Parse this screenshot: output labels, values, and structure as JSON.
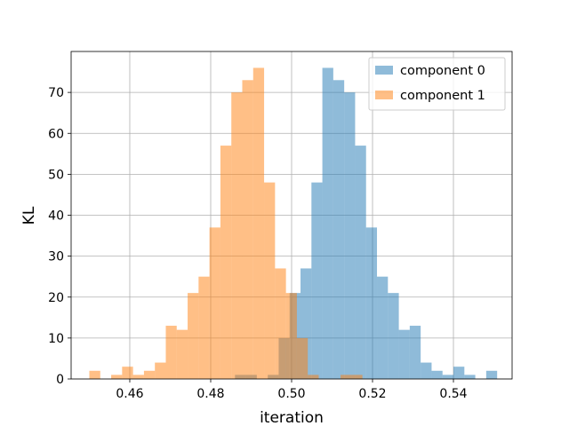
{
  "chart_data": {
    "type": "histogram",
    "title": "",
    "xlabel": "iteration",
    "ylabel": "KL",
    "xlim": [
      0.4455,
      0.5545
    ],
    "ylim": [
      0,
      80
    ],
    "xticks": [
      0.46,
      0.48,
      0.5,
      0.52,
      0.54
    ],
    "xtick_labels": [
      "0.46",
      "0.48",
      "0.50",
      "0.52",
      "0.54"
    ],
    "yticks": [
      0,
      10,
      20,
      30,
      40,
      50,
      60,
      70
    ],
    "ytick_labels": [
      "0",
      "10",
      "20",
      "30",
      "40",
      "50",
      "60",
      "70"
    ],
    "grid": true,
    "legend_position": "top-right",
    "bin_width": 0.0027,
    "series": [
      {
        "name": "component 0",
        "color": "#1f77b4",
        "alpha": 0.5,
        "bins": [
          {
            "x0": 0.486,
            "count": 1
          },
          {
            "x0": 0.4887,
            "count": 1
          },
          {
            "x0": 0.4941,
            "count": 1
          },
          {
            "x0": 0.4968,
            "count": 10
          },
          {
            "x0": 0.4995,
            "count": 21
          },
          {
            "x0": 0.5022,
            "count": 27
          },
          {
            "x0": 0.5049,
            "count": 48
          },
          {
            "x0": 0.5076,
            "count": 76
          },
          {
            "x0": 0.5103,
            "count": 73
          },
          {
            "x0": 0.513,
            "count": 70
          },
          {
            "x0": 0.5157,
            "count": 57
          },
          {
            "x0": 0.5184,
            "count": 37
          },
          {
            "x0": 0.5211,
            "count": 25
          },
          {
            "x0": 0.5238,
            "count": 21
          },
          {
            "x0": 0.5265,
            "count": 12
          },
          {
            "x0": 0.5292,
            "count": 13
          },
          {
            "x0": 0.5319,
            "count": 4
          },
          {
            "x0": 0.5346,
            "count": 2
          },
          {
            "x0": 0.5373,
            "count": 1
          },
          {
            "x0": 0.54,
            "count": 3
          },
          {
            "x0": 0.5427,
            "count": 1
          },
          {
            "x0": 0.5481,
            "count": 2
          }
        ]
      },
      {
        "name": "component 1",
        "color": "#ff7f0e",
        "alpha": 0.5,
        "bins": [
          {
            "x0": 0.45,
            "count": 2
          },
          {
            "x0": 0.4554,
            "count": 1
          },
          {
            "x0": 0.4581,
            "count": 3
          },
          {
            "x0": 0.4608,
            "count": 1
          },
          {
            "x0": 0.4635,
            "count": 2
          },
          {
            "x0": 0.4662,
            "count": 4
          },
          {
            "x0": 0.4689,
            "count": 13
          },
          {
            "x0": 0.4716,
            "count": 12
          },
          {
            "x0": 0.4743,
            "count": 21
          },
          {
            "x0": 0.477,
            "count": 25
          },
          {
            "x0": 0.4797,
            "count": 37
          },
          {
            "x0": 0.4824,
            "count": 57
          },
          {
            "x0": 0.4851,
            "count": 70
          },
          {
            "x0": 0.4878,
            "count": 73
          },
          {
            "x0": 0.4905,
            "count": 76
          },
          {
            "x0": 0.4932,
            "count": 48
          },
          {
            "x0": 0.4959,
            "count": 27
          },
          {
            "x0": 0.4986,
            "count": 21
          },
          {
            "x0": 0.5013,
            "count": 10
          },
          {
            "x0": 0.504,
            "count": 1
          },
          {
            "x0": 0.5121,
            "count": 1
          },
          {
            "x0": 0.5148,
            "count": 1
          }
        ]
      }
    ]
  }
}
